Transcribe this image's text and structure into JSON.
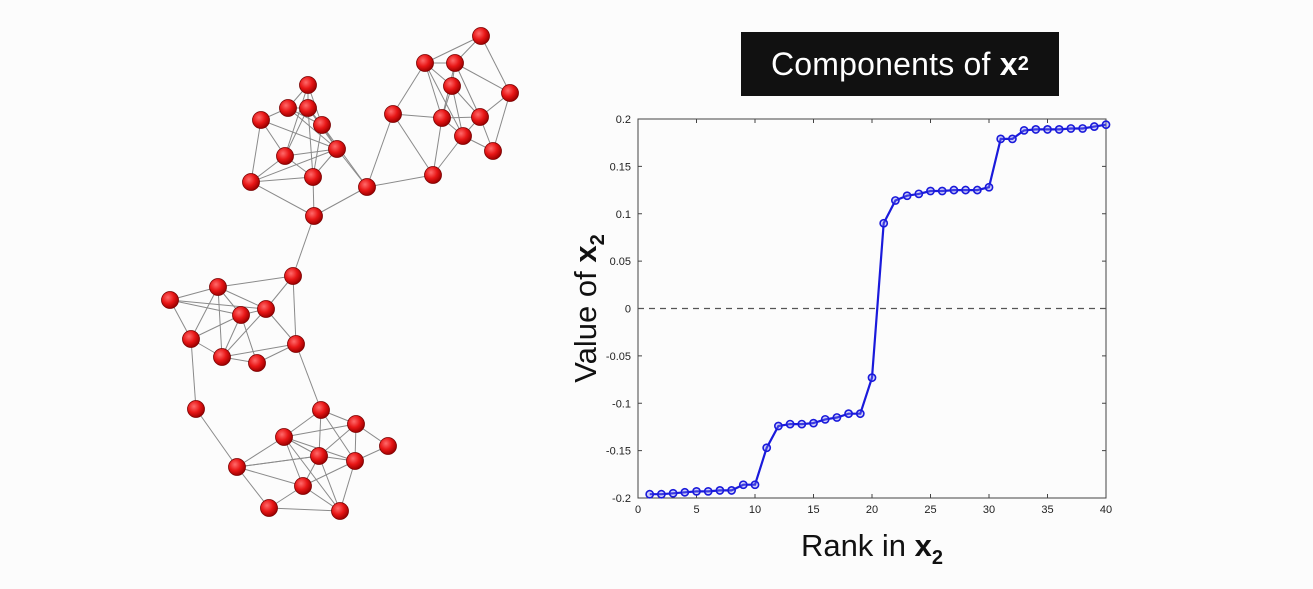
{
  "title": {
    "text": "Components of",
    "var": "x",
    "sub": "2"
  },
  "chart_data": {
    "type": "line",
    "xlabel": "Rank in x2",
    "ylabel": "Value of x2",
    "xlabel_parts": {
      "prefix": "Rank in ",
      "var": "x",
      "sub": "2"
    },
    "ylabel_parts": {
      "prefix": "Value of ",
      "var": "x",
      "sub": "2"
    },
    "xlim": [
      0,
      40
    ],
    "ylim": [
      -0.2,
      0.2
    ],
    "xticks": [
      "0",
      "5",
      "10",
      "15",
      "20",
      "25",
      "30",
      "35",
      "40"
    ],
    "yticks": [
      "-0.2",
      "-0.15",
      "-0.1",
      "-0.05",
      "0",
      "0.05",
      "0.1",
      "0.15",
      "0.2"
    ],
    "reference_line": {
      "y": 0,
      "style": "dashed"
    },
    "series": [
      {
        "color": "#1a1adb",
        "marker": "circle",
        "x": [
          1,
          2,
          3,
          4,
          5,
          6,
          7,
          8,
          9,
          10,
          11,
          12,
          13,
          14,
          15,
          16,
          17,
          18,
          19,
          20,
          21,
          22,
          23,
          24,
          25,
          26,
          27,
          28,
          29,
          30,
          31,
          32,
          33,
          34,
          35,
          36,
          37,
          38,
          39,
          40
        ],
        "y": [
          -0.196,
          -0.196,
          -0.195,
          -0.194,
          -0.193,
          -0.193,
          -0.192,
          -0.192,
          -0.186,
          -0.186,
          -0.147,
          -0.124,
          -0.122,
          -0.122,
          -0.121,
          -0.117,
          -0.115,
          -0.111,
          -0.111,
          -0.073,
          0.09,
          0.114,
          0.119,
          0.121,
          0.124,
          0.124,
          0.125,
          0.125,
          0.125,
          0.128,
          0.179,
          0.179,
          0.188,
          0.189,
          0.189,
          0.189,
          0.19,
          0.19,
          0.192,
          0.194
        ]
      }
    ]
  },
  "graph": {
    "node_color": "#e81616",
    "edge_color": "#8a8a8a"
  }
}
